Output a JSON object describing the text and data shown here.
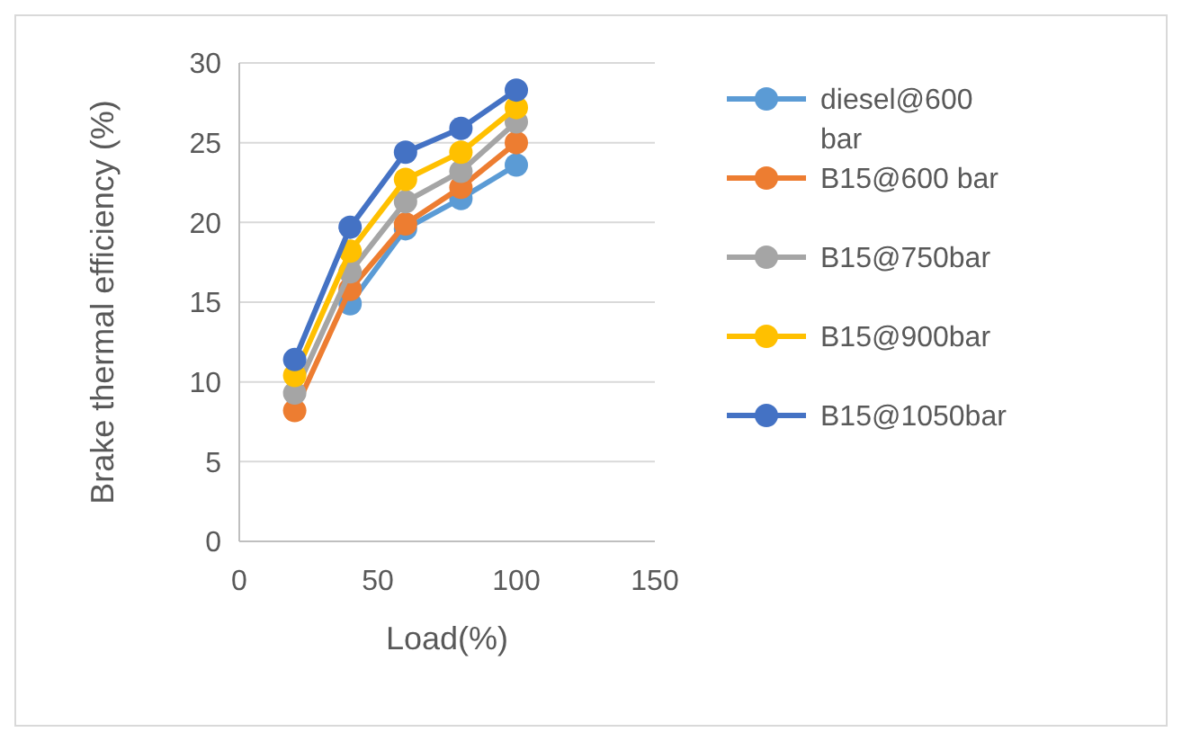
{
  "chart_data": {
    "type": "line",
    "xlabel": "Load(%)",
    "ylabel": "Brake thermal efficiency (%)",
    "x": [
      20,
      40,
      60,
      80,
      100
    ],
    "xlim": [
      0,
      150
    ],
    "xticks": [
      0,
      50,
      100,
      150
    ],
    "ylim": [
      0,
      30
    ],
    "yticks": [
      0,
      5,
      10,
      15,
      20,
      25,
      30
    ],
    "grid": "y",
    "legend": "right",
    "marker": "circle",
    "line_style": "solid",
    "series": [
      {
        "name": "diesel@600 bar",
        "color": "#5b9bd5",
        "values": [
          null,
          14.9,
          19.6,
          21.5,
          23.6
        ]
      },
      {
        "name": "B15@600 bar",
        "color": "#ed7d31",
        "values": [
          8.2,
          15.8,
          19.9,
          22.2,
          25.0
        ]
      },
      {
        "name": "B15@750bar",
        "color": "#a5a5a5",
        "values": [
          9.3,
          16.9,
          21.3,
          23.2,
          26.3
        ]
      },
      {
        "name": "B15@900bar",
        "color": "#ffc000",
        "values": [
          10.4,
          18.2,
          22.7,
          24.4,
          27.2
        ]
      },
      {
        "name": "B15@1050bar",
        "color": "#4472c4",
        "values": [
          11.4,
          19.7,
          24.4,
          25.9,
          28.3
        ]
      }
    ]
  }
}
